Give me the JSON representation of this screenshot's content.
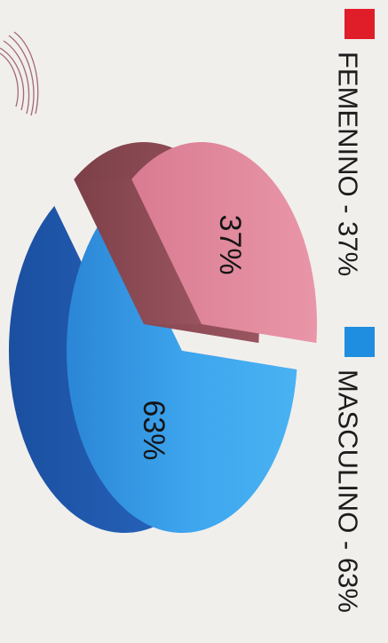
{
  "chart_data": {
    "type": "pie",
    "title": "",
    "labels": [
      "FEMENINO",
      "MASCULINO"
    ],
    "values": [
      37,
      63
    ],
    "slice_labels": [
      "37%",
      "63%"
    ],
    "legend_entries": [
      "FEMENINO - 37%",
      "MASCULINO - 63%"
    ],
    "colors": [
      "#e48b9f",
      "#3aa6ea"
    ],
    "legend_colors": [
      "#e01e2a",
      "#1f8ee0"
    ],
    "legend_position": "right",
    "style": "3d-exploded",
    "orientation": "rotated-90"
  }
}
